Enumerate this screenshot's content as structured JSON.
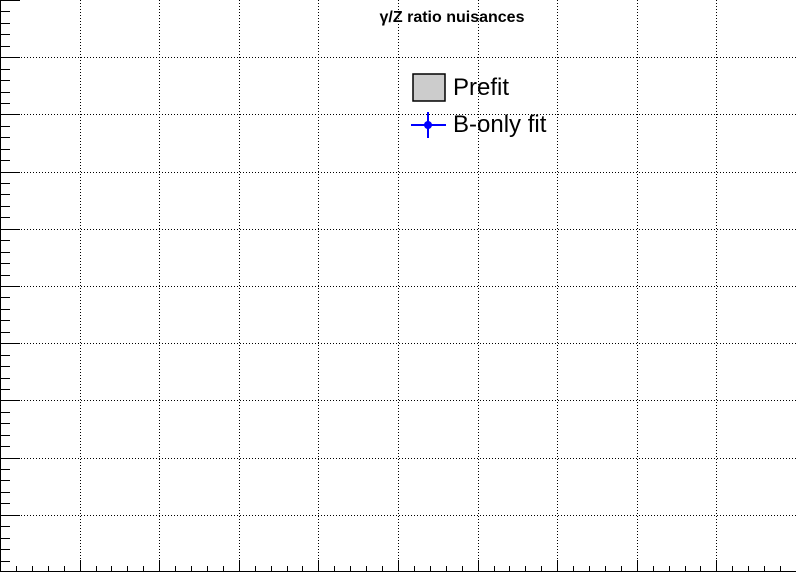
{
  "chart_data": {
    "type": "scatter",
    "title": "γ/Z ratio nuisances",
    "xlabel": "",
    "ylabel": "",
    "grid": true,
    "legend_position": "top-center",
    "legend": [
      {
        "label": "Prefit",
        "style": "filled-box",
        "color": "#cccccc"
      },
      {
        "label": "B-only fit",
        "style": "marker-errorbar",
        "color": "#0000ff"
      }
    ],
    "series": [],
    "x_divisions": 10,
    "y_divisions": 10
  }
}
